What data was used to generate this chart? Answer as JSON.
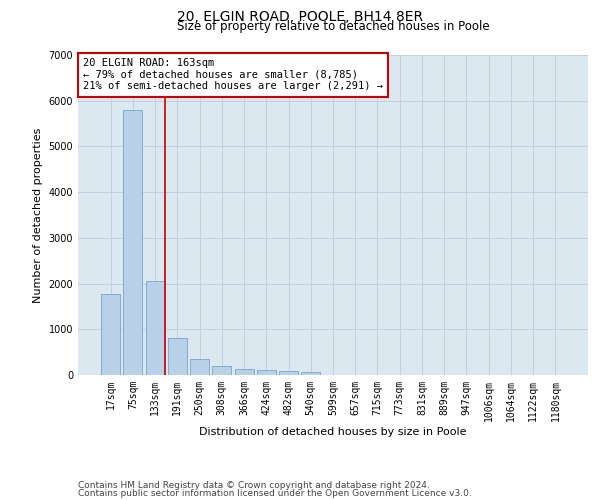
{
  "title_line1": "20, ELGIN ROAD, POOLE, BH14 8ER",
  "title_line2": "Size of property relative to detached houses in Poole",
  "xlabel": "Distribution of detached houses by size in Poole",
  "ylabel": "Number of detached properties",
  "bar_color": "#b8d0e8",
  "bar_edge_color": "#6699cc",
  "grid_color": "#c0d0e0",
  "background_color": "#dce8f0",
  "categories": [
    "17sqm",
    "75sqm",
    "133sqm",
    "191sqm",
    "250sqm",
    "308sqm",
    "366sqm",
    "424sqm",
    "482sqm",
    "540sqm",
    "599sqm",
    "657sqm",
    "715sqm",
    "773sqm",
    "831sqm",
    "889sqm",
    "947sqm",
    "1006sqm",
    "1064sqm",
    "1122sqm",
    "1180sqm"
  ],
  "values": [
    1780,
    5800,
    2060,
    820,
    340,
    190,
    125,
    105,
    95,
    65,
    0,
    0,
    0,
    0,
    0,
    0,
    0,
    0,
    0,
    0,
    0
  ],
  "ylim": [
    0,
    7000
  ],
  "yticks": [
    0,
    1000,
    2000,
    3000,
    4000,
    5000,
    6000,
    7000
  ],
  "property_label": "20 ELGIN ROAD: 163sqm",
  "annotation_line1": "← 79% of detached houses are smaller (8,785)",
  "annotation_line2": "21% of semi-detached houses are larger (2,291) →",
  "marker_bin_index": 2,
  "red_line_color": "#cc0000",
  "annotation_box_edge": "#cc0000",
  "footer_line1": "Contains HM Land Registry data © Crown copyright and database right 2024.",
  "footer_line2": "Contains public sector information licensed under the Open Government Licence v3.0.",
  "title_fontsize": 10,
  "subtitle_fontsize": 8.5,
  "axis_label_fontsize": 8,
  "tick_fontsize": 7,
  "annotation_fontsize": 7.5,
  "footer_fontsize": 6.5
}
